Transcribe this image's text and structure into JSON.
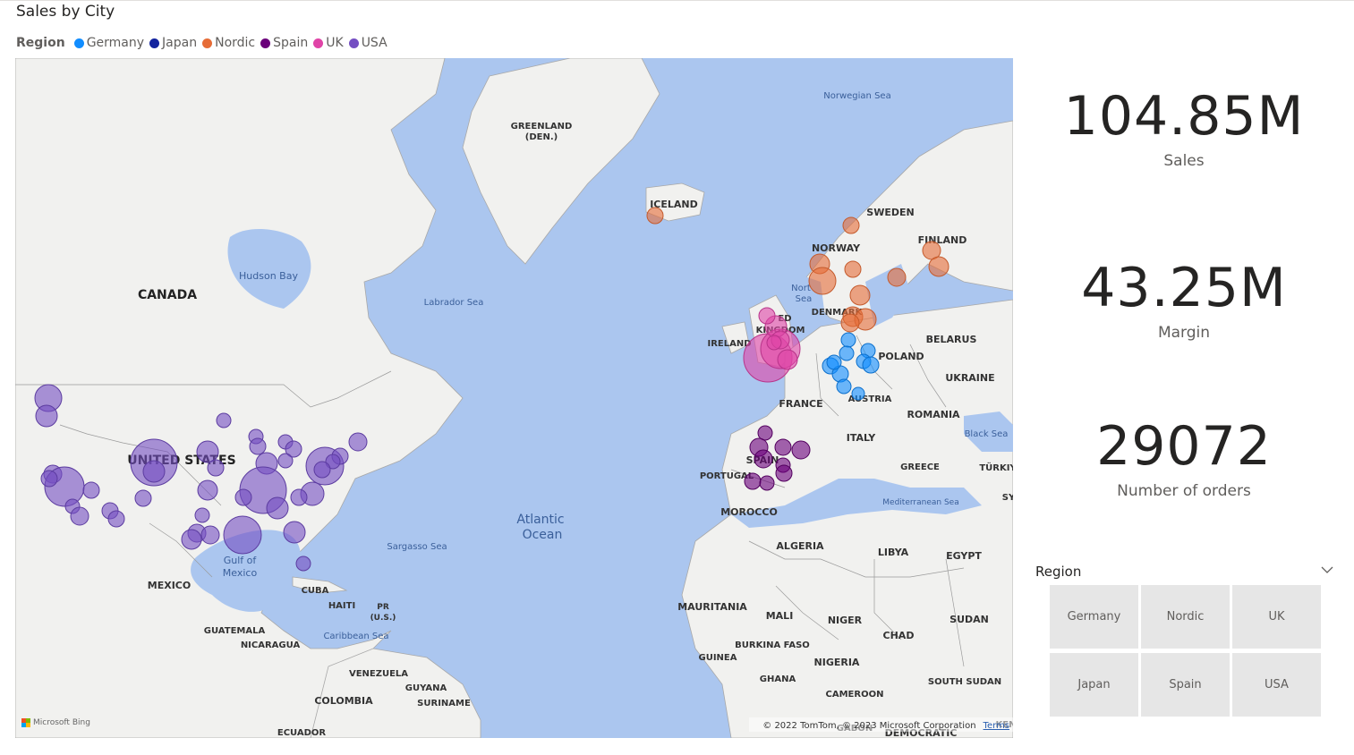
{
  "map_visual": {
    "title": "Sales by City",
    "legend": {
      "title": "Region",
      "items": [
        {
          "label": "Germany",
          "color": "#118dff"
        },
        {
          "label": "Japan",
          "color": "#12239e"
        },
        {
          "label": "Nordic",
          "color": "#e66c37"
        },
        {
          "label": "Spain",
          "color": "#6b007b"
        },
        {
          "label": "UK",
          "color": "#e044a7"
        },
        {
          "label": "USA",
          "color": "#744ec2"
        }
      ]
    },
    "map_labels": {
      "greenland": "GREENLAND",
      "greenland_sub": "(DEN.)",
      "norwegian_sea": "Norwegian Sea",
      "iceland": "ICELAND",
      "sweden": "SWEDEN",
      "finland": "FINLAND",
      "norway": "NORWAY",
      "north_sea_1": "Nort",
      "north_sea_2": "Sea",
      "denmark": "DENMARK",
      "uk_1": "ED",
      "uk_2": "KINGDOM",
      "ireland": "IRELAND",
      "poland": "POLAND",
      "belarus": "BELARUS",
      "ukraine": "UKRAINE",
      "austria": "AUSTRIA",
      "france": "FRANCE",
      "romania": "ROMANIA",
      "black_sea": "Black Sea",
      "italy": "ITALY",
      "greece": "GREECE",
      "turkiye": "TÜRKIY",
      "spain": "SPAIN",
      "portugal": "PORTUGAL",
      "mediterranean": "Mediterranean Sea",
      "sy": "SY",
      "morocco": "MOROCCO",
      "algeria": "ALGERIA",
      "libya": "LIBYA",
      "egypt": "EGYPT",
      "mauritania": "MAURITANIA",
      "mali": "MALI",
      "niger": "NIGER",
      "chad": "CHAD",
      "sudan": "SUDAN",
      "guinea": "GUINEA",
      "burkina": "BURKINA FASO",
      "nigeria": "NIGERIA",
      "ghana": "GHANA",
      "cameroon": "CAMEROON",
      "south_sudan": "SOUTH SUDAN",
      "gabon": "GABON",
      "democratic": "DEMOCRATIC",
      "ken": "KEN",
      "canada": "CANADA",
      "hudson_bay": "Hudson Bay",
      "labrador_sea": "Labrador Sea",
      "united_states": "UNITED STATES",
      "atlantic_1": "Atlantic",
      "atlantic_2": "Ocean",
      "sargasso": "Sargasso Sea",
      "gulf_1": "Gulf of",
      "gulf_2": "Mexico",
      "mexico": "MEXICO",
      "cuba": "CUBA",
      "haiti": "HAITI",
      "pr_1": "PR",
      "pr_2": "(U.S.)",
      "guatemala": "GUATEMALA",
      "nicaragua": "NICARAGUA",
      "caribbean": "Caribbean Sea",
      "venezuela": "VENEZUELA",
      "guyana": "GUYANA",
      "suriname": "SURINAME",
      "colombia": "COLOMBIA",
      "ecuador": "ECUADOR"
    },
    "attribution": "© 2022 TomTom, © 2023 Microsoft Corporation",
    "terms_link": "Terms",
    "bing_logo": "Microsoft Bing"
  },
  "kpis": [
    {
      "value": "104.85M",
      "label": "Sales"
    },
    {
      "value": "43.25M",
      "label": "Margin"
    },
    {
      "value": "29072",
      "label": "Number of orders"
    }
  ],
  "slicer": {
    "title": "Region",
    "tiles": [
      "Germany",
      "Nordic",
      "UK",
      "Japan",
      "Spain",
      "USA"
    ]
  }
}
